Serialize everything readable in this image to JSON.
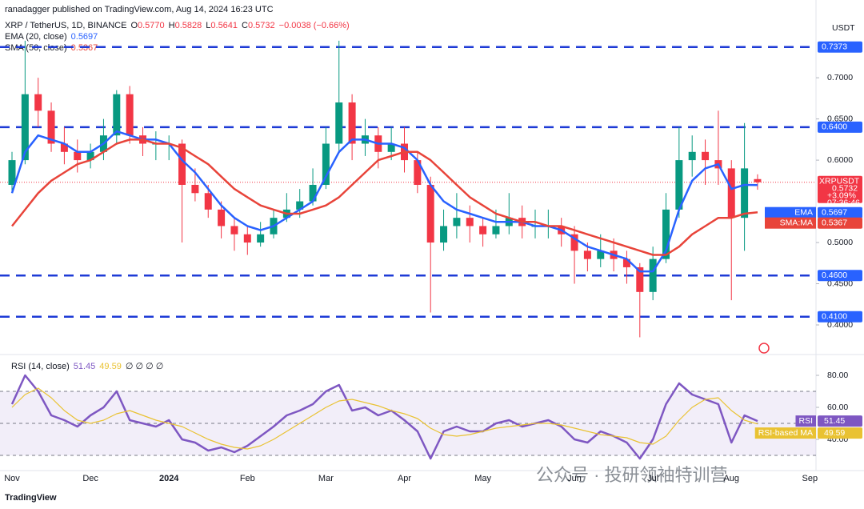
{
  "header": {
    "publisher": "ranadagger published on TradingView.com, Aug 14, 2024 16:23 UTC",
    "symbol": "XRP / TetherUS, 1D, BINANCE",
    "ohlc": [
      {
        "key": "O",
        "value": "0.5770"
      },
      {
        "key": "H",
        "value": "0.5828"
      },
      {
        "key": "L",
        "value": "0.5641"
      },
      {
        "key": "C",
        "value": "0.5732"
      }
    ],
    "change": "−0.0038 (−0.66%)"
  },
  "footer": "TradingView",
  "watermark": "公众号 · 投研领袖特训营",
  "chart_data": [
    {
      "type": "candlestick",
      "currency": "USDT",
      "categories": [
        "Nov",
        null,
        null,
        null,
        null,
        null,
        "Dec",
        null,
        null,
        null,
        null,
        null,
        "2024",
        null,
        null,
        null,
        null,
        null,
        "Feb",
        null,
        null,
        null,
        null,
        null,
        "Mar",
        null,
        null,
        null,
        null,
        null,
        "Apr",
        null,
        null,
        null,
        null,
        null,
        "May",
        null,
        null,
        null,
        null,
        null,
        null,
        "Jun",
        null,
        null,
        null,
        null,
        null,
        "Jul",
        null,
        null,
        null,
        null,
        null,
        "Aug",
        null,
        null,
        null,
        null,
        null,
        "Sep"
      ],
      "open": [
        0.57,
        0.6,
        0.68,
        0.66,
        0.62,
        0.61,
        0.6,
        0.61,
        0.63,
        0.68,
        0.63,
        0.62,
        0.62,
        0.62,
        0.57,
        0.56,
        0.54,
        0.52,
        0.51,
        0.5,
        0.51,
        0.53,
        0.54,
        0.55,
        0.57,
        0.62,
        0.67,
        0.62,
        0.63,
        0.61,
        0.62,
        0.6,
        0.57,
        0.5,
        0.52,
        0.53,
        0.52,
        0.51,
        0.52,
        0.53,
        0.52,
        0.52,
        0.52,
        0.51,
        0.49,
        0.48,
        0.49,
        0.48,
        0.47,
        0.44,
        0.48,
        0.54,
        0.6,
        0.61,
        0.6,
        0.59,
        0.53,
        0.577,
        null,
        null,
        null,
        null
      ],
      "high": [
        0.61,
        0.745,
        0.7,
        0.67,
        0.64,
        0.625,
        0.62,
        0.65,
        0.685,
        0.69,
        0.64,
        0.635,
        0.63,
        0.625,
        0.59,
        0.57,
        0.55,
        0.53,
        0.52,
        0.525,
        0.54,
        0.56,
        0.565,
        0.59,
        0.64,
        0.745,
        0.68,
        0.65,
        0.64,
        0.64,
        0.64,
        0.61,
        0.58,
        0.54,
        0.56,
        0.545,
        0.53,
        0.54,
        0.56,
        0.545,
        0.54,
        0.54,
        0.53,
        0.52,
        0.5,
        0.51,
        0.505,
        0.49,
        0.475,
        0.495,
        0.56,
        0.64,
        0.63,
        0.625,
        0.66,
        0.6,
        0.645,
        0.5828,
        null,
        null,
        null,
        null
      ],
      "low": [
        0.56,
        0.595,
        0.64,
        0.61,
        0.595,
        0.585,
        0.59,
        0.6,
        0.62,
        0.62,
        0.605,
        0.6,
        0.6,
        0.5,
        0.55,
        0.53,
        0.505,
        0.49,
        0.485,
        0.495,
        0.505,
        0.525,
        0.53,
        0.545,
        0.565,
        0.61,
        0.6,
        0.605,
        0.59,
        0.6,
        0.585,
        0.56,
        0.415,
        0.49,
        0.505,
        0.5,
        0.495,
        0.505,
        0.51,
        0.505,
        0.505,
        0.505,
        0.495,
        0.45,
        0.465,
        0.47,
        0.465,
        0.45,
        0.385,
        0.43,
        0.475,
        0.53,
        0.58,
        0.57,
        0.57,
        0.43,
        0.49,
        0.5641,
        null,
        null,
        null,
        null
      ],
      "close": [
        0.6,
        0.68,
        0.66,
        0.62,
        0.61,
        0.6,
        0.61,
        0.63,
        0.68,
        0.63,
        0.62,
        0.62,
        0.62,
        0.57,
        0.56,
        0.54,
        0.52,
        0.51,
        0.5,
        0.51,
        0.53,
        0.54,
        0.55,
        0.57,
        0.62,
        0.67,
        0.62,
        0.63,
        0.61,
        0.62,
        0.6,
        0.57,
        0.5,
        0.52,
        0.53,
        0.52,
        0.51,
        0.52,
        0.53,
        0.52,
        0.52,
        0.52,
        0.51,
        0.49,
        0.48,
        0.49,
        0.48,
        0.47,
        0.44,
        0.48,
        0.54,
        0.6,
        0.61,
        0.6,
        0.59,
        0.53,
        0.59,
        0.5732,
        null,
        null,
        null,
        null
      ],
      "up_color": "#089981",
      "down_color": "#f23645",
      "symbol_badge": {
        "name": "XRPUSDT",
        "change": "+3.09%",
        "countdown": "07:36:46"
      },
      "series": [
        {
          "name": "EMA (20, close)",
          "badge": "EMA",
          "color": "#2962ff",
          "values": [
            0.56,
            0.61,
            0.63,
            0.625,
            0.62,
            0.61,
            0.61,
            0.62,
            0.635,
            0.63,
            0.625,
            0.625,
            0.62,
            0.6,
            0.585,
            0.565,
            0.545,
            0.53,
            0.52,
            0.515,
            0.52,
            0.53,
            0.54,
            0.55,
            0.58,
            0.61,
            0.625,
            0.625,
            0.62,
            0.62,
            0.615,
            0.6,
            0.57,
            0.55,
            0.54,
            0.535,
            0.53,
            0.525,
            0.525,
            0.525,
            0.52,
            0.52,
            0.515,
            0.505,
            0.495,
            0.49,
            0.485,
            0.48,
            0.465,
            0.465,
            0.49,
            0.54,
            0.575,
            0.59,
            0.595,
            0.565,
            0.57,
            0.5697,
            null,
            null,
            null,
            null
          ]
        },
        {
          "name": "SMA (50, close)",
          "badge": "SMA:MA",
          "color": "#e8443a",
          "values": [
            0.52,
            0.54,
            0.56,
            0.575,
            0.585,
            0.595,
            0.6,
            0.61,
            0.62,
            0.625,
            0.625,
            0.62,
            0.62,
            0.615,
            0.605,
            0.595,
            0.58,
            0.565,
            0.555,
            0.545,
            0.54,
            0.535,
            0.535,
            0.54,
            0.545,
            0.555,
            0.57,
            0.585,
            0.6,
            0.605,
            0.61,
            0.61,
            0.6,
            0.585,
            0.57,
            0.555,
            0.545,
            0.535,
            0.53,
            0.525,
            0.525,
            0.52,
            0.52,
            0.515,
            0.51,
            0.505,
            0.5,
            0.495,
            0.49,
            0.485,
            0.485,
            0.495,
            0.51,
            0.52,
            0.53,
            0.53,
            0.535,
            0.5367,
            null,
            null,
            null,
            null
          ]
        }
      ],
      "levels": [
        {
          "value": 0.7373,
          "label": "0.7373"
        },
        {
          "value": 0.64,
          "label": "0.6400"
        },
        {
          "value": 0.46,
          "label": "0.4600"
        },
        {
          "value": 0.41,
          "label": "0.4100"
        }
      ],
      "level_color": "#1e3bd6",
      "ylim": [
        0.366,
        0.773
      ],
      "yticks": [
        {
          "value": 0.4,
          "label": "0.4000"
        },
        {
          "value": 0.45,
          "label": "0.4500"
        },
        {
          "value": 0.5,
          "label": "0.5000"
        },
        {
          "value": 0.6,
          "label": "0.6000"
        },
        {
          "value": 0.65,
          "label": "0.6500"
        },
        {
          "value": 0.7,
          "label": "0.7000"
        }
      ]
    },
    {
      "type": "line",
      "title": "RSI (14, close)",
      "na_values": "∅ ∅ ∅ ∅",
      "series": [
        {
          "name": "RSI",
          "color": "#7e57c2",
          "values": [
            62,
            80,
            70,
            55,
            52,
            48,
            55,
            60,
            70,
            52,
            50,
            48,
            52,
            40,
            38,
            33,
            35,
            32,
            36,
            42,
            48,
            55,
            58,
            62,
            70,
            74,
            58,
            60,
            55,
            58,
            52,
            45,
            28,
            45,
            48,
            45,
            45,
            50,
            52,
            48,
            50,
            52,
            48,
            40,
            38,
            45,
            42,
            38,
            28,
            40,
            62,
            75,
            68,
            65,
            62,
            38,
            55,
            51.45,
            null,
            null,
            null,
            null
          ]
        },
        {
          "name": "RSI-based MA",
          "color": "#e9c232",
          "values": [
            60,
            68,
            72,
            66,
            58,
            52,
            50,
            52,
            56,
            58,
            55,
            52,
            50,
            48,
            44,
            40,
            37,
            35,
            34,
            36,
            40,
            45,
            50,
            55,
            60,
            64,
            65,
            63,
            61,
            58,
            56,
            53,
            47,
            43,
            42,
            43,
            45,
            47,
            48,
            49,
            50,
            50,
            49,
            47,
            45,
            43,
            42,
            41,
            38,
            37,
            42,
            52,
            60,
            65,
            66,
            58,
            52,
            49.59,
            null,
            null,
            null,
            null
          ]
        }
      ],
      "levels": [
        70,
        50,
        30
      ],
      "ylim": [
        23,
        90.5
      ],
      "yticks": [
        {
          "value": 40,
          "label": "40.00"
        },
        {
          "value": 60,
          "label": "60.00"
        },
        {
          "value": 80,
          "label": "80.00"
        }
      ]
    }
  ]
}
